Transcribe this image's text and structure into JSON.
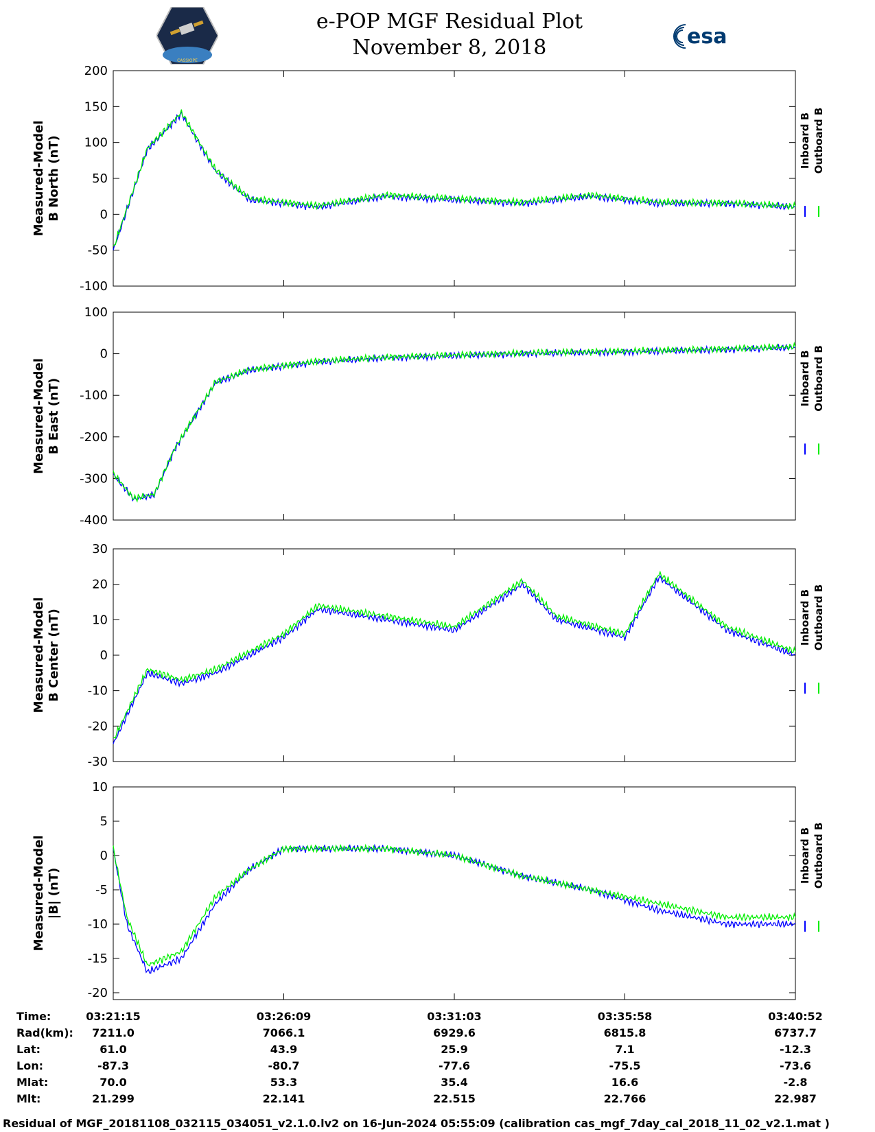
{
  "title": {
    "line1": "e-POP MGF Residual Plot",
    "line2": "November 8, 2018"
  },
  "logos": {
    "left": "CASSIOPE",
    "right": "esa"
  },
  "colors": {
    "inboard": "#0000ff",
    "outboard": "#00ee00"
  },
  "legend": {
    "inboard": "Inboard B",
    "outboard": "Outboard B"
  },
  "chart_data": [
    {
      "type": "line",
      "ylabel_line1": "Measured-Model",
      "ylabel_line2": "B North (nT)",
      "ylim": [
        -100,
        200
      ],
      "yticks": [
        200,
        150,
        100,
        50,
        0,
        -50,
        -100
      ],
      "x": [
        0,
        0.05,
        0.1,
        0.15,
        0.2,
        0.3,
        0.4,
        0.5,
        0.6,
        0.7,
        0.8,
        0.9,
        1.0
      ],
      "series": [
        {
          "name": "Inboard B",
          "values": [
            -50,
            90,
            140,
            60,
            20,
            10,
            25,
            20,
            15,
            25,
            15,
            15,
            10
          ]
        },
        {
          "name": "Outboard B",
          "values": [
            -48,
            92,
            142,
            62,
            22,
            12,
            27,
            22,
            17,
            27,
            17,
            16,
            11
          ]
        }
      ]
    },
    {
      "type": "line",
      "ylabel_line1": "Measured-Model",
      "ylabel_line2": "B East (nT)",
      "ylim": [
        -400,
        100
      ],
      "yticks": [
        100,
        0,
        -100,
        -200,
        -300,
        -400
      ],
      "x": [
        0,
        0.03,
        0.06,
        0.09,
        0.12,
        0.15,
        0.2,
        0.3,
        0.4,
        0.5,
        0.6,
        0.7,
        0.8,
        0.9,
        1.0
      ],
      "series": [
        {
          "name": "Inboard B",
          "values": [
            -290,
            -350,
            -340,
            -230,
            -150,
            -70,
            -40,
            -20,
            -10,
            -5,
            0,
            3,
            6,
            10,
            15
          ]
        },
        {
          "name": "Outboard B",
          "values": [
            -288,
            -348,
            -338,
            -228,
            -148,
            -68,
            -38,
            -18,
            -8,
            -3,
            2,
            5,
            8,
            12,
            17
          ]
        }
      ]
    },
    {
      "type": "line",
      "ylabel_line1": "Measured-Model",
      "ylabel_line2": "B Center (nT)",
      "ylim": [
        -30,
        30
      ],
      "yticks": [
        30,
        20,
        10,
        0,
        -10,
        -20,
        -30
      ],
      "x": [
        0,
        0.05,
        0.1,
        0.15,
        0.2,
        0.25,
        0.3,
        0.4,
        0.5,
        0.6,
        0.65,
        0.75,
        0.8,
        0.9,
        1.0
      ],
      "series": [
        {
          "name": "Inboard B",
          "values": [
            -25,
            -5,
            -8,
            -5,
            0,
            5,
            13,
            10,
            7,
            20,
            10,
            5,
            22,
            7,
            0
          ]
        },
        {
          "name": "Outboard B",
          "values": [
            -24,
            -4,
            -7,
            -4,
            1,
            6,
            14,
            11,
            8,
            21,
            11,
            6,
            23,
            8,
            1
          ]
        }
      ]
    },
    {
      "type": "line",
      "ylabel_line1": "Measured-Model",
      "ylabel_line2": "|B| (nT)",
      "ylim": [
        -21,
        10
      ],
      "yticks": [
        10,
        5,
        0,
        -5,
        -10,
        -15,
        -20
      ],
      "x": [
        0,
        0.02,
        0.05,
        0.1,
        0.15,
        0.2,
        0.25,
        0.3,
        0.4,
        0.5,
        0.6,
        0.7,
        0.8,
        0.9,
        1.0
      ],
      "series": [
        {
          "name": "Inboard B",
          "values": [
            1,
            -10,
            -17,
            -15,
            -7,
            -2,
            1,
            1,
            1,
            0,
            -3,
            -5,
            -8,
            -10,
            -10
          ]
        },
        {
          "name": "Outboard B",
          "values": [
            1,
            -9,
            -16,
            -14,
            -6,
            -2,
            1,
            1,
            1,
            0,
            -3,
            -5,
            -7,
            -9,
            -9
          ]
        }
      ]
    }
  ],
  "info": {
    "row_labels": [
      "Time:",
      "Rad(km):",
      "Lat:",
      "Lon:",
      "Mlat:",
      "Mlt:"
    ],
    "columns": [
      [
        "03:21:15",
        "7211.0",
        "61.0",
        "-87.3",
        "70.0",
        "21.299"
      ],
      [
        "03:26:09",
        "7066.1",
        "43.9",
        "-80.7",
        "53.3",
        "22.141"
      ],
      [
        "03:31:03",
        "6929.6",
        "25.9",
        "-77.6",
        "35.4",
        "22.515"
      ],
      [
        "03:35:58",
        "6815.8",
        "7.1",
        "-75.5",
        "16.6",
        "22.766"
      ],
      [
        "03:40:52",
        "6737.7",
        "-12.3",
        "-73.6",
        "-2.8",
        "22.987"
      ]
    ]
  },
  "footer": "Residual of MGF_20181108_032115_034051_v2.1.0.lv2 on 16-Jun-2024 05:55:09 (calibration cas_mgf_7day_cal_2018_11_02_v2.1.mat )"
}
